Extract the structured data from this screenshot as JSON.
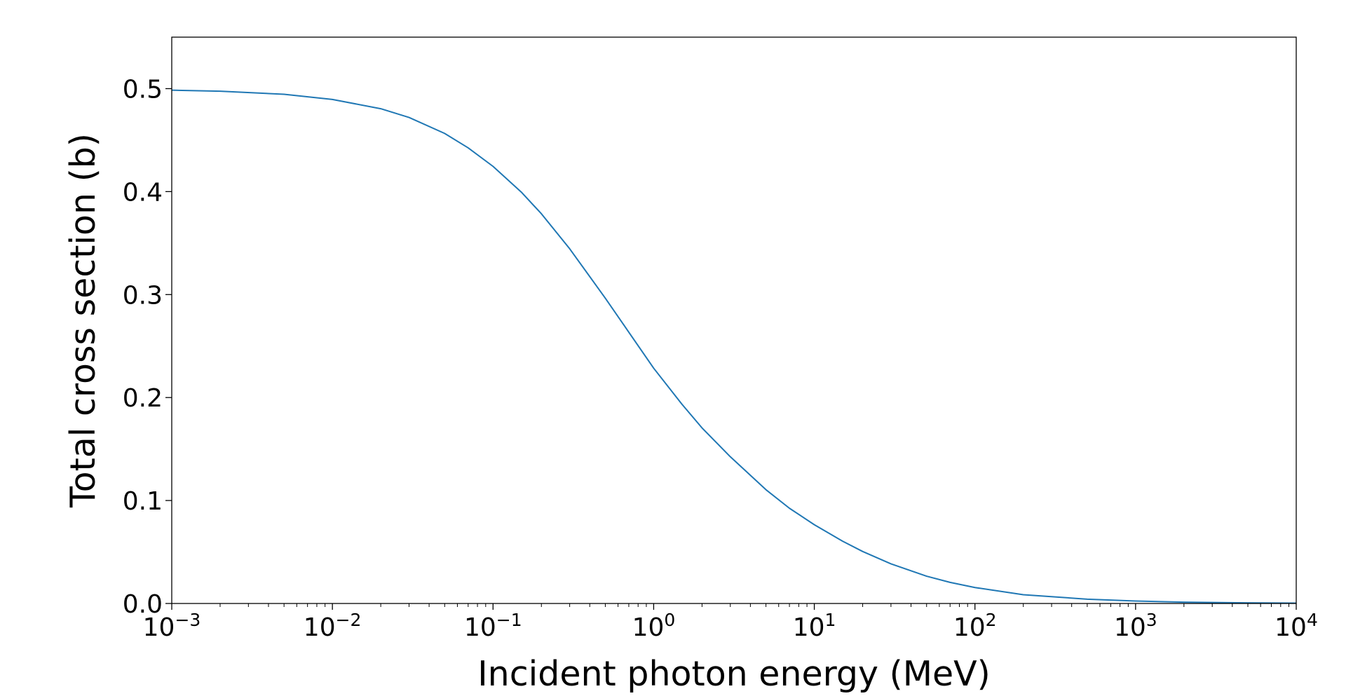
{
  "chart_data": {
    "type": "line",
    "title": "",
    "xlabel": "Incident photon energy (MeV)",
    "ylabel": "Total cross section (b)",
    "xscale": "log",
    "xlim": [
      0.001,
      10000
    ],
    "ylim": [
      0.0,
      0.55
    ],
    "grid": false,
    "legend": "none",
    "x_ticks": [
      {
        "value": 0.001,
        "base": "10",
        "exp": "−3"
      },
      {
        "value": 0.01,
        "base": "10",
        "exp": "−2"
      },
      {
        "value": 0.1,
        "base": "10",
        "exp": "−1"
      },
      {
        "value": 1,
        "base": "10",
        "exp": "0"
      },
      {
        "value": 10,
        "base": "10",
        "exp": "1"
      },
      {
        "value": 100,
        "base": "10",
        "exp": "2"
      },
      {
        "value": 1000,
        "base": "10",
        "exp": "3"
      },
      {
        "value": 10000,
        "base": "10",
        "exp": "4"
      }
    ],
    "y_ticks": [
      {
        "value": 0.0,
        "label": "0.0"
      },
      {
        "value": 0.1,
        "label": "0.1"
      },
      {
        "value": 0.2,
        "label": "0.2"
      },
      {
        "value": 0.3,
        "label": "0.3"
      },
      {
        "value": 0.4,
        "label": "0.4"
      },
      {
        "value": 0.5,
        "label": "0.5"
      }
    ],
    "series": [
      {
        "color": "#1f77b4",
        "x": [
          0.001,
          0.002,
          0.005,
          0.01,
          0.02,
          0.03,
          0.05,
          0.07,
          0.1,
          0.15,
          0.2,
          0.3,
          0.5,
          0.7,
          1,
          1.5,
          2,
          3,
          5,
          7,
          10,
          15,
          20,
          30,
          50,
          70,
          100,
          200,
          500,
          1000,
          2000,
          5000,
          10000
        ],
        "y": [
          0.4985,
          0.4975,
          0.4945,
          0.4895,
          0.4805,
          0.472,
          0.4565,
          0.4425,
          0.4245,
          0.3995,
          0.3785,
          0.3445,
          0.2965,
          0.2635,
          0.2285,
          0.1935,
          0.1705,
          0.1425,
          0.1105,
          0.0925,
          0.0765,
          0.0605,
          0.0505,
          0.0385,
          0.0265,
          0.0205,
          0.0155,
          0.0085,
          0.0042,
          0.0024,
          0.0013,
          0.0006,
          0.0003
        ]
      }
    ]
  }
}
